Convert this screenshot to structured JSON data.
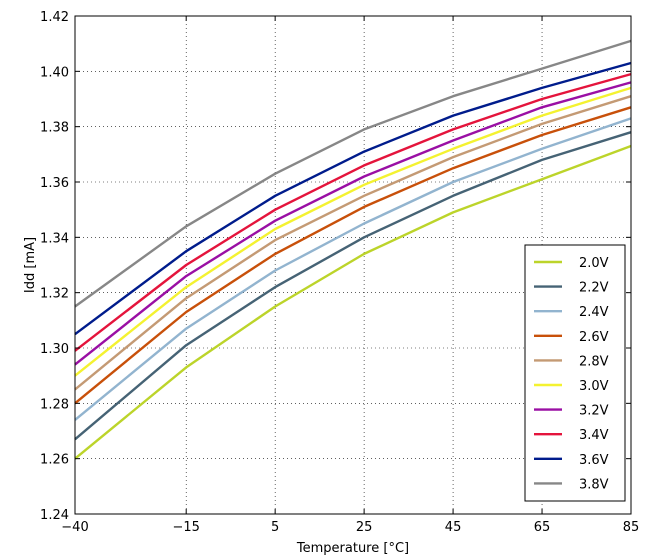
{
  "chart_data": {
    "type": "line",
    "xlabel": "Temperature [°C]",
    "ylabel": "Idd [mA]",
    "x": [
      -40,
      -15,
      5,
      25,
      45,
      65,
      85
    ],
    "x_tick_labels": [
      "−40",
      "−15",
      "5",
      "25",
      "45",
      "65",
      "85"
    ],
    "xlim": [
      -40,
      85
    ],
    "ylim": [
      1.24,
      1.42
    ],
    "y_ticks": [
      1.24,
      1.26,
      1.28,
      1.3,
      1.32,
      1.34,
      1.36,
      1.38,
      1.4,
      1.42
    ],
    "y_tick_labels": [
      "1.24",
      "1.26",
      "1.28",
      "1.30",
      "1.32",
      "1.34",
      "1.36",
      "1.38",
      "1.40",
      "1.42"
    ],
    "grid": true,
    "legend_position": "bottom-right",
    "series": [
      {
        "name": "2.0V",
        "color": "#bcd42a",
        "values": [
          1.26,
          1.293,
          1.315,
          1.334,
          1.349,
          1.361,
          1.373
        ]
      },
      {
        "name": "2.2V",
        "color": "#466375",
        "values": [
          1.267,
          1.301,
          1.322,
          1.34,
          1.355,
          1.368,
          1.378
        ]
      },
      {
        "name": "2.4V",
        "color": "#92b4cf",
        "values": [
          1.274,
          1.307,
          1.328,
          1.345,
          1.36,
          1.372,
          1.383
        ]
      },
      {
        "name": "2.6V",
        "color": "#c8500a",
        "values": [
          1.28,
          1.313,
          1.334,
          1.351,
          1.365,
          1.377,
          1.387
        ]
      },
      {
        "name": "2.8V",
        "color": "#c49a74",
        "values": [
          1.285,
          1.318,
          1.339,
          1.355,
          1.369,
          1.381,
          1.391
        ]
      },
      {
        "name": "3.0V",
        "color": "#f4f230",
        "values": [
          1.29,
          1.322,
          1.343,
          1.359,
          1.372,
          1.384,
          1.394
        ]
      },
      {
        "name": "3.2V",
        "color": "#9a0fa4",
        "values": [
          1.294,
          1.326,
          1.346,
          1.362,
          1.375,
          1.387,
          1.396
        ]
      },
      {
        "name": "3.4V",
        "color": "#e4143c",
        "values": [
          1.299,
          1.33,
          1.35,
          1.366,
          1.379,
          1.39,
          1.399
        ]
      },
      {
        "name": "3.6V",
        "color": "#001c8c",
        "values": [
          1.305,
          1.335,
          1.355,
          1.371,
          1.384,
          1.394,
          1.403
        ]
      },
      {
        "name": "3.8V",
        "color": "#878787",
        "values": [
          1.315,
          1.344,
          1.363,
          1.379,
          1.391,
          1.401,
          1.411
        ]
      }
    ]
  }
}
